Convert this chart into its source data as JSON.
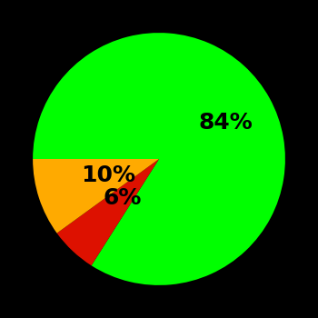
{
  "slices": [
    84,
    6,
    10
  ],
  "colors": [
    "#00ff00",
    "#dd1100",
    "#ffaa00"
  ],
  "labels": [
    "84%",
    "6%",
    "10%"
  ],
  "background_color": "#000000",
  "text_color": "#000000",
  "startangle": 180,
  "counterclock": false,
  "label_radii": [
    0.6,
    0.42,
    0.42
  ],
  "label_fontsize": 18,
  "label_fontweight": "bold"
}
